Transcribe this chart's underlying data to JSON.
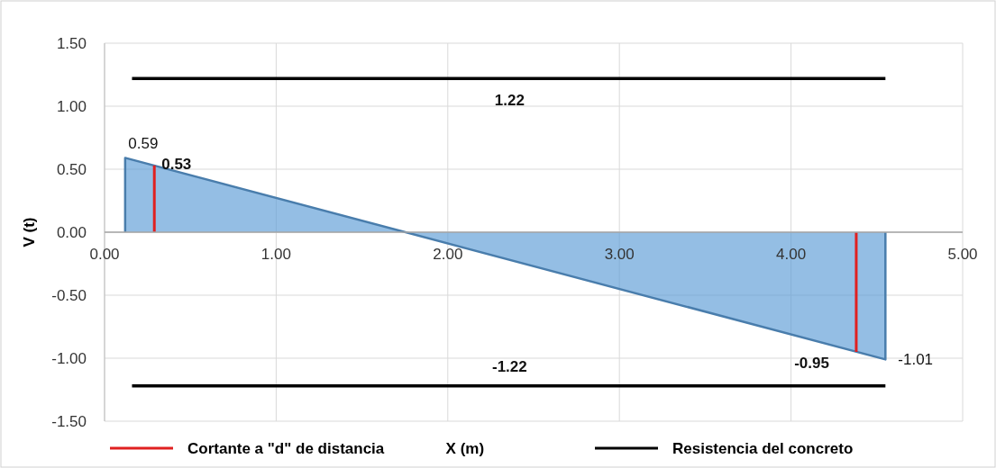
{
  "chart_data": {
    "type": "area",
    "xlabel": "X (m)",
    "ylabel": "V (t)",
    "xlim": [
      0,
      5
    ],
    "xticks": [
      {
        "value": 0,
        "label": "0.00"
      },
      {
        "value": 1,
        "label": "1.00"
      },
      {
        "value": 2,
        "label": "2.00"
      },
      {
        "value": 3,
        "label": "3.00"
      },
      {
        "value": 4,
        "label": "4.00"
      },
      {
        "value": 5,
        "label": "5.00"
      }
    ],
    "ylim": [
      -1.5,
      1.5
    ],
    "yticks": [
      {
        "value": -1.5,
        "label": "-1.50"
      },
      {
        "value": -1,
        "label": "-1.00"
      },
      {
        "value": -0.5,
        "label": "-0.50"
      },
      {
        "value": 0,
        "label": "0.00"
      },
      {
        "value": 0.5,
        "label": "0.50"
      },
      {
        "value": 1,
        "label": "1.00"
      },
      {
        "value": 1.5,
        "label": "1.50"
      }
    ],
    "grid": true,
    "legend": "bottom",
    "series": [
      {
        "color": "#5b9bd5",
        "x": [
          0.12,
          4.55
        ],
        "values": [
          0.59,
          -1.01
        ],
        "value_labels": [
          "0.59",
          "-1.01"
        ]
      },
      {
        "type": "line",
        "name": "Cortante a \"d\" de distancia",
        "color": "#e02020",
        "x": [
          0.29,
          0.29
        ],
        "values": [
          0,
          0.53
        ],
        "value_labels": [
          null,
          "0.53"
        ]
      },
      {
        "type": "line",
        "color": "#e02020",
        "x": [
          4.38,
          4.38
        ],
        "values": [
          0,
          -0.95
        ],
        "value_labels": [
          null,
          "-0.95"
        ]
      },
      {
        "type": "line",
        "name": "Resistencia del concreto",
        "color": "#000000",
        "x": [
          0.16,
          2.36,
          4.55
        ],
        "values": [
          1.22,
          1.22,
          1.22
        ],
        "value_labels": [
          null,
          "1.22",
          null
        ]
      },
      {
        "type": "line",
        "color": "#000000",
        "x": [
          0.16,
          2.36,
          4.55
        ],
        "values": [
          -1.22,
          -1.22,
          -1.22
        ],
        "value_labels": [
          null,
          "-1.22",
          null
        ]
      }
    ]
  }
}
